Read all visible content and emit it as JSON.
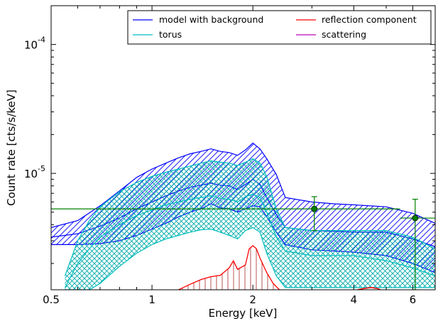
{
  "chart_data": {
    "type": "line",
    "xlabel": "Energy [keV]",
    "ylabel": "Count rate [cts/s/keV]",
    "xscale": "log",
    "yscale": "log",
    "xlim": [
      0.5,
      7.0
    ],
    "ylim": [
      1.25e-06,
      0.0002
    ],
    "grid": false,
    "legend_position": "top-right",
    "x_ticks": [
      {
        "value": 0.5,
        "label": "0.5"
      },
      {
        "value": 1,
        "label": "1"
      },
      {
        "value": 2,
        "label": "2"
      },
      {
        "value": 4,
        "label": "4"
      },
      {
        "value": 6,
        "label": "6"
      }
    ],
    "y_ticks": [
      {
        "value": 1e-05,
        "label": "10",
        "exponent": "-5"
      },
      {
        "value": 0.0001,
        "label": "10",
        "exponent": "-4"
      }
    ],
    "legend": [
      {
        "label": "model with background",
        "color": "#0000ff"
      },
      {
        "label": "reflection component",
        "color": "#ff0000"
      },
      {
        "label": "torus",
        "color": "#00bfbf"
      },
      {
        "label": "scattering",
        "color": "#bf00bf"
      }
    ],
    "series": [
      {
        "name": "model with background",
        "color": "#0000ff",
        "x": [
          0.5,
          0.6,
          0.7,
          0.8,
          0.9,
          1.0,
          1.1,
          1.2,
          1.3,
          1.4,
          1.5,
          1.6,
          1.7,
          1.8,
          1.9,
          2.0,
          2.1,
          2.2,
          2.35,
          2.5,
          3.0,
          3.5,
          4.0,
          5.0,
          6.0,
          7.0
        ],
        "mid": [
          3.2e-06,
          3.4e-06,
          3.9e-06,
          4.5e-06,
          5.3e-06,
          6e-06,
          6.7e-06,
          7.3e-06,
          7.8e-06,
          8.1e-06,
          8.4e-06,
          8.1e-06,
          8e-06,
          7.5e-06,
          8.2e-06,
          9e-06,
          8.2e-06,
          6.5e-06,
          4.8e-06,
          3.8e-06,
          3.6e-06,
          3.55e-06,
          3.5e-06,
          3.5e-06,
          3.1e-06,
          2.7e-06
        ],
        "upper": [
          3.8e-06,
          4.3e-06,
          5.6e-06,
          7.3e-06,
          9.3e-06,
          1.08e-05,
          1.2e-05,
          1.32e-05,
          1.42e-05,
          1.48e-05,
          1.55e-05,
          1.48e-05,
          1.45e-05,
          1.38e-05,
          1.52e-05,
          1.72e-05,
          1.55e-05,
          1.3e-05,
          9.8e-06,
          6.5e-06,
          6e-06,
          5.8e-06,
          5.7e-06,
          5.5e-06,
          4.9e-06,
          4.1e-06
        ],
        "lower": [
          2.8e-06,
          2.8e-06,
          2.85e-06,
          3e-06,
          3.3e-06,
          3.7e-06,
          4.1e-06,
          4.6e-06,
          5e-06,
          5.3e-06,
          5.8e-06,
          5.4e-06,
          5.3e-06,
          5e-06,
          5.3e-06,
          5.6e-06,
          5.5e-06,
          4.6e-06,
          3.5e-06,
          2.8e-06,
          2.55e-06,
          2.5e-06,
          2.45e-06,
          2.3e-06,
          2e-06,
          1.7e-06
        ]
      },
      {
        "name": "torus",
        "color": "#00bfbf",
        "x": [
          0.55,
          0.6,
          0.65,
          0.7,
          0.8,
          0.9,
          1.0,
          1.1,
          1.2,
          1.3,
          1.4,
          1.5,
          1.6,
          1.7,
          1.8,
          1.9,
          2.0,
          2.1,
          2.2,
          2.35,
          2.5,
          3.0,
          3.5,
          4.0,
          5.0,
          6.0,
          7.0
        ],
        "mid": [
          1.3e-06,
          2e-06,
          2.6e-06,
          3.2e-06,
          4e-06,
          4.7e-06,
          5.2e-06,
          5.7e-06,
          6e-06,
          6.3e-06,
          6.5e-06,
          6.7e-06,
          6.4e-06,
          6.3e-06,
          6e-06,
          6.6e-06,
          6.9e-06,
          6.5e-06,
          5e-06,
          3.2e-06,
          2.5e-06,
          2.3e-06,
          2.3e-06,
          2.3e-06,
          2.1e-06,
          1.85e-06,
          1.6e-06
        ],
        "upper": [
          1.6e-06,
          3e-06,
          4.3e-06,
          5.5e-06,
          7.2e-06,
          8.5e-06,
          9.5e-06,
          1.02e-05,
          1.08e-05,
          1.14e-05,
          1.2e-05,
          1.25e-05,
          1.22e-05,
          1.2e-05,
          1.15e-05,
          1.22e-05,
          1.3e-05,
          1.2e-05,
          9.5e-06,
          5.3e-06,
          3.8e-06,
          3.6e-06,
          3.6e-06,
          3.6e-06,
          3.6e-06,
          3.2e-06,
          2.6e-06
        ],
        "lower": [
          1.25e-06,
          1.25e-06,
          1.25e-06,
          1.4e-06,
          1.9e-06,
          2.4e-06,
          2.8e-06,
          3.1e-06,
          3.3e-06,
          3.5e-06,
          3.65e-06,
          3.7e-06,
          3.5e-06,
          3.3e-06,
          3.1e-06,
          3.6e-06,
          3.8e-06,
          3.5e-06,
          2.4e-06,
          1.6e-06,
          1.3e-06,
          1.3e-06,
          1.3e-06,
          1.3e-06,
          1.3e-06,
          1.3e-06,
          1.3e-06
        ]
      },
      {
        "name": "reflection component",
        "color": "#ff0000",
        "x": [
          1.2,
          1.3,
          1.4,
          1.5,
          1.6,
          1.7,
          1.75,
          1.8,
          1.9,
          1.95,
          2.0,
          2.05,
          2.1,
          2.2,
          2.3,
          2.4
        ],
        "mid": [
          1.25e-06,
          1.38e-06,
          1.5e-06,
          1.58e-06,
          1.62e-06,
          1.85e-06,
          2.1e-06,
          1.8e-06,
          1.95e-06,
          2.6e-06,
          2.75e-06,
          2.6e-06,
          2.2e-06,
          1.7e-06,
          1.4e-06,
          1.25e-06
        ],
        "x2": [
          4.1,
          4.3,
          4.5,
          4.7,
          4.8
        ],
        "mid2": [
          1.25e-06,
          1.28e-06,
          1.3e-06,
          1.28e-06,
          1.25e-06
        ]
      }
    ],
    "data_points": [
      {
        "x": 3.05,
        "y": 5.3e-06,
        "yerr_low": 3.6e-06,
        "yerr_high": 6.6e-06,
        "x_low": 0.5,
        "x_high": 5.5
      },
      {
        "x": 6.1,
        "y": 4.5e-06,
        "yerr_low": 1.25e-06,
        "yerr_high": 6.3e-06,
        "x_low": 5.5,
        "x_high": 7.0
      }
    ],
    "data_color": "#008000"
  }
}
